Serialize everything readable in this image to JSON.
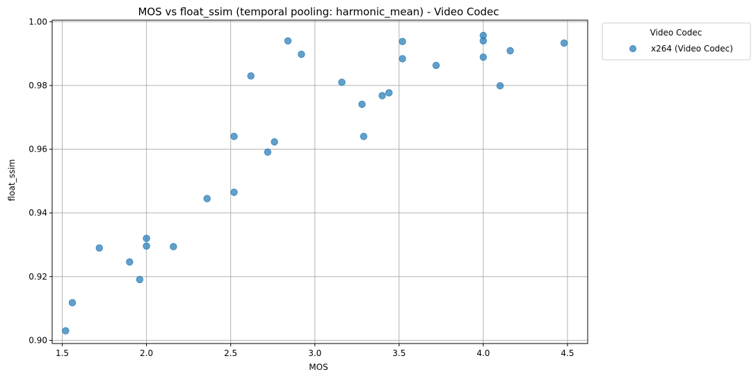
{
  "chart_data": {
    "type": "scatter",
    "title": "MOS vs float_ssim (temporal pooling: harmonic_mean) - Video Codec",
    "xlabel": "MOS",
    "ylabel": "float_ssim",
    "xlim": [
      1.44,
      4.62
    ],
    "ylim": [
      0.899,
      1.0005
    ],
    "xticks": [
      1.5,
      2.0,
      2.5,
      3.0,
      3.5,
      4.0,
      4.5
    ],
    "xtick_labels": [
      "1.5",
      "2.0",
      "2.5",
      "3.0",
      "3.5",
      "4.0",
      "4.5"
    ],
    "yticks": [
      0.9,
      0.92,
      0.94,
      0.96,
      0.98,
      1.0
    ],
    "ytick_labels": [
      "0.90",
      "0.92",
      "0.94",
      "0.96",
      "0.98",
      "1.00"
    ],
    "grid": true,
    "legend": {
      "title": "Video Codec",
      "placement": "outside-top-right"
    },
    "series": [
      {
        "name": "x264 (Video Codec)",
        "color": "#1f77b4",
        "points": [
          {
            "x": 1.52,
            "y": 0.903
          },
          {
            "x": 1.56,
            "y": 0.9118
          },
          {
            "x": 1.72,
            "y": 0.929
          },
          {
            "x": 1.9,
            "y": 0.9246
          },
          {
            "x": 1.96,
            "y": 0.9191
          },
          {
            "x": 2.0,
            "y": 0.932
          },
          {
            "x": 2.0,
            "y": 0.9296
          },
          {
            "x": 2.16,
            "y": 0.9294
          },
          {
            "x": 2.36,
            "y": 0.9445
          },
          {
            "x": 2.52,
            "y": 0.964
          },
          {
            "x": 2.52,
            "y": 0.9465
          },
          {
            "x": 2.62,
            "y": 0.983
          },
          {
            "x": 2.72,
            "y": 0.9591
          },
          {
            "x": 2.76,
            "y": 0.9623
          },
          {
            "x": 2.84,
            "y": 0.994
          },
          {
            "x": 2.92,
            "y": 0.9898
          },
          {
            "x": 3.16,
            "y": 0.981
          },
          {
            "x": 3.28,
            "y": 0.9741
          },
          {
            "x": 3.29,
            "y": 0.964
          },
          {
            "x": 3.4,
            "y": 0.9768
          },
          {
            "x": 3.44,
            "y": 0.9777
          },
          {
            "x": 3.52,
            "y": 0.9938
          },
          {
            "x": 3.52,
            "y": 0.9884
          },
          {
            "x": 3.72,
            "y": 0.9863
          },
          {
            "x": 4.0,
            "y": 0.9957
          },
          {
            "x": 4.0,
            "y": 0.994
          },
          {
            "x": 4.0,
            "y": 0.9889
          },
          {
            "x": 4.1,
            "y": 0.9799
          },
          {
            "x": 4.16,
            "y": 0.9909
          },
          {
            "x": 4.48,
            "y": 0.9933
          }
        ]
      }
    ]
  }
}
